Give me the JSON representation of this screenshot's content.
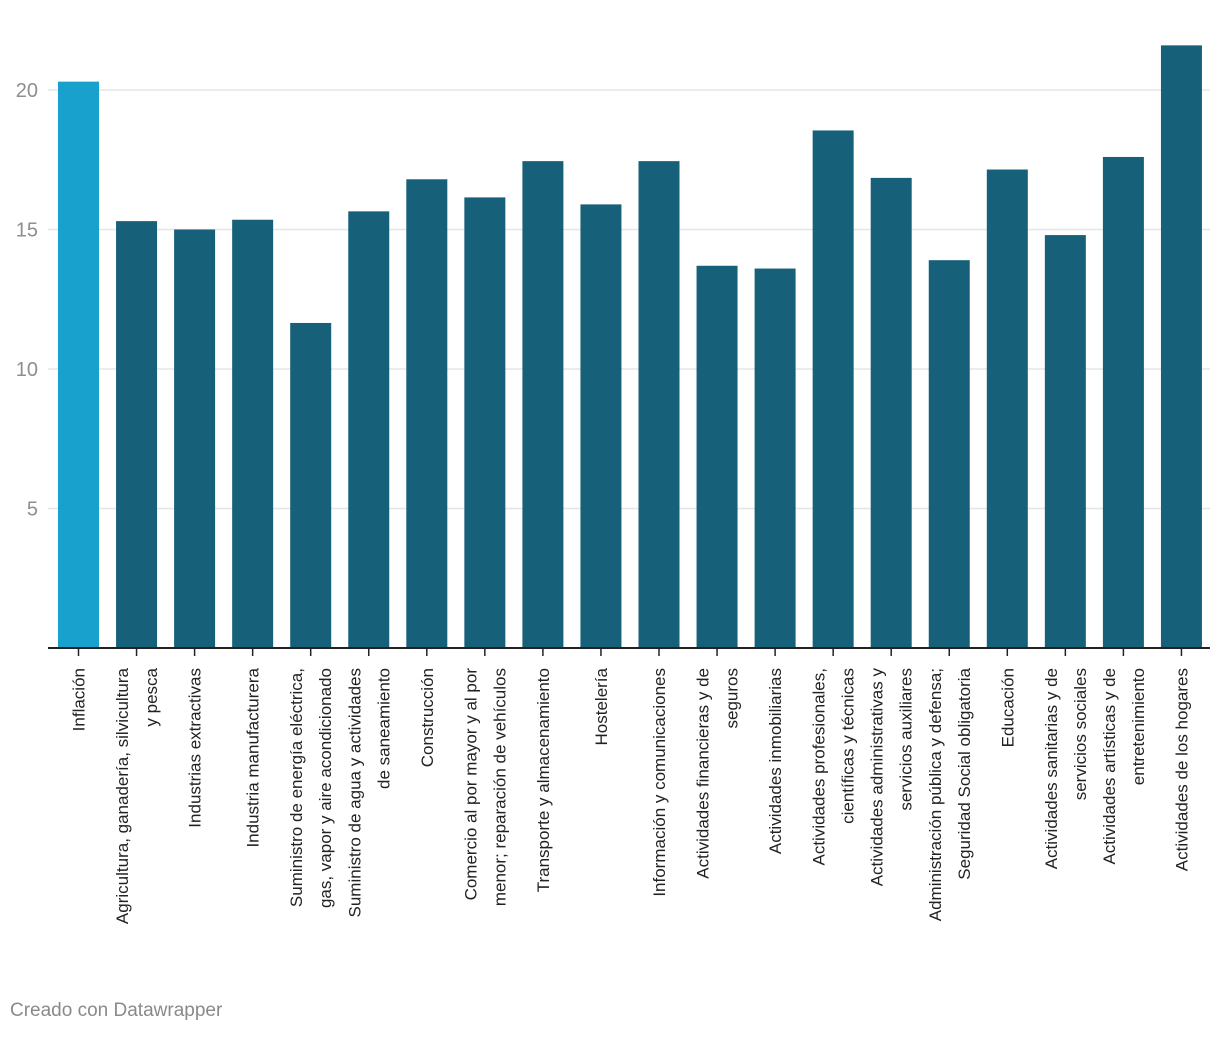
{
  "chart_data": {
    "type": "bar",
    "title": "",
    "xlabel": "",
    "ylabel": "",
    "ylim": [
      0,
      22
    ],
    "yticks": [
      5,
      10,
      15,
      20
    ],
    "grid": true,
    "categories": [
      "Inflación",
      "Agricultura, ganadería, silvicultura y pesca",
      "Industrias extractivas",
      "Industria manufacturera",
      "Suministro de energía eléctrica, gas, vapor y aire acondicionado",
      "Suministro de agua y actividades de saneamiento",
      "Construcción",
      "Comercio al por mayor y al por menor; reparación de vehículos",
      "Transporte y almacenamiento",
      "Hostelería",
      "Información y comunicaciones",
      "Actividades financieras y de seguros",
      "Actividades inmobiliarias",
      "Actividades profesionales, científicas y técnicas",
      "Actividades administrativas y servicios auxiliares",
      "Administración pública y defensa; Seguridad Social obligatoria",
      "Educación",
      "Actividades sanitarias y de servicios sociales",
      "Actividades artísticas y de entretenimiento",
      "Actividades de los hogares"
    ],
    "label_lines": [
      [
        "Inflación"
      ],
      [
        "Agricultura, ganadería, silvicultura",
        "y pesca"
      ],
      [
        "Industrias extractivas"
      ],
      [
        "Industria manufacturera"
      ],
      [
        "Suministro de energía eléctrica,",
        "gas, vapor y aire acondicionado"
      ],
      [
        "Suministro de agua y actividades",
        "de saneamiento"
      ],
      [
        "Construcción"
      ],
      [
        "Comercio al por mayor y al por",
        "menor; reparación de vehículos"
      ],
      [
        "Transporte y almacenamiento"
      ],
      [
        "Hostelería"
      ],
      [
        "Información y comunicaciones"
      ],
      [
        "Actividades financieras y de",
        "seguros"
      ],
      [
        "Actividades inmobiliarias"
      ],
      [
        "Actividades profesionales,",
        "científicas y técnicas"
      ],
      [
        "Actividades administrativas y",
        "servicios auxiliares"
      ],
      [
        "Administración pública y defensa;",
        "Seguridad Social obligatoria"
      ],
      [
        "Educación"
      ],
      [
        "Actividades sanitarias y de",
        "servicios sociales"
      ],
      [
        "Actividades artísticas y de",
        "entretenimiento"
      ],
      [
        "Actividades de los hogares"
      ]
    ],
    "values": [
      20.3,
      15.3,
      15.0,
      15.35,
      11.65,
      15.65,
      16.8,
      16.15,
      17.45,
      15.9,
      17.45,
      13.7,
      13.6,
      18.55,
      16.85,
      13.9,
      17.15,
      14.8,
      17.6,
      21.6
    ],
    "highlight_index": 0,
    "colors": {
      "highlight": "#18a1cd",
      "bar": "#17607a",
      "grid": "#e5e5e5",
      "axis": "#222222"
    }
  },
  "footer": {
    "credit": "Creado con Datawrapper"
  }
}
